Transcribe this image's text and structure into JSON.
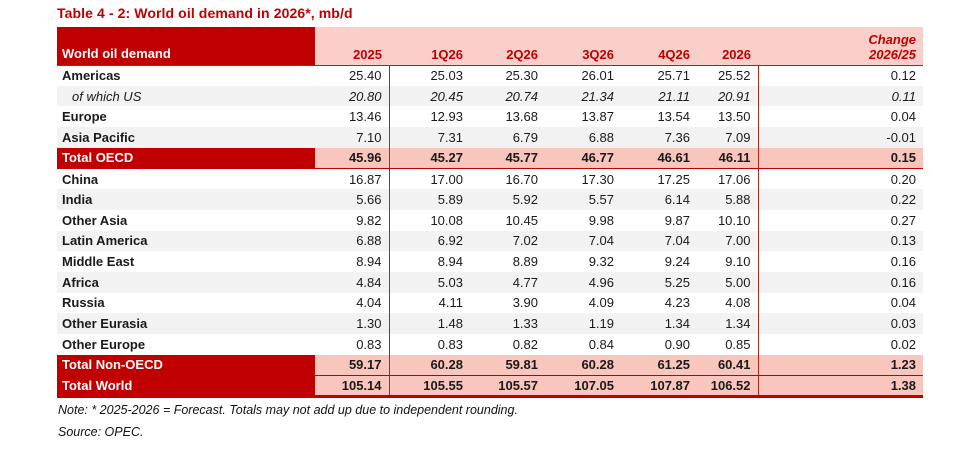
{
  "title": "Table 4 - 2: World oil demand in 2026*, mb/d",
  "colors": {
    "accent_dark_red": "#c00000",
    "header_pink": "#fbcfc9",
    "total_row_pink": "#f9c6bd",
    "shaded_row_gray": "#f2f2f2"
  },
  "table": {
    "label_header": "World oil demand",
    "columns": [
      "2025",
      "1Q26",
      "2Q26",
      "3Q26",
      "4Q26",
      "2026"
    ],
    "change_header_line1": "Change",
    "change_header_line2": "2026/25",
    "rows": [
      {
        "label": "Americas",
        "style": "normal",
        "shaded": false,
        "values": [
          "25.40",
          "25.03",
          "25.30",
          "26.01",
          "25.71",
          "25.52",
          "0.12"
        ]
      },
      {
        "label": "of which US",
        "style": "sub",
        "shaded": true,
        "values": [
          "20.80",
          "20.45",
          "20.74",
          "21.34",
          "21.11",
          "20.91",
          "0.11"
        ]
      },
      {
        "label": "Europe",
        "style": "normal",
        "shaded": false,
        "values": [
          "13.46",
          "12.93",
          "13.68",
          "13.87",
          "13.54",
          "13.50",
          "0.04"
        ]
      },
      {
        "label": "Asia Pacific",
        "style": "normal",
        "shaded": true,
        "values": [
          "7.10",
          "7.31",
          "6.79",
          "6.88",
          "7.36",
          "7.09",
          "-0.01"
        ]
      },
      {
        "label": "Total OECD",
        "style": "total",
        "shaded": false,
        "values": [
          "45.96",
          "45.27",
          "45.77",
          "46.77",
          "46.61",
          "46.11",
          "0.15"
        ]
      },
      {
        "label": "China",
        "style": "normal",
        "shaded": false,
        "values": [
          "16.87",
          "17.00",
          "16.70",
          "17.30",
          "17.25",
          "17.06",
          "0.20"
        ]
      },
      {
        "label": "India",
        "style": "normal",
        "shaded": true,
        "values": [
          "5.66",
          "5.89",
          "5.92",
          "5.57",
          "6.14",
          "5.88",
          "0.22"
        ]
      },
      {
        "label": "Other Asia",
        "style": "normal",
        "shaded": false,
        "values": [
          "9.82",
          "10.08",
          "10.45",
          "9.98",
          "9.87",
          "10.10",
          "0.27"
        ]
      },
      {
        "label": "Latin America",
        "style": "normal",
        "shaded": true,
        "values": [
          "6.88",
          "6.92",
          "7.02",
          "7.04",
          "7.04",
          "7.00",
          "0.13"
        ]
      },
      {
        "label": "Middle East",
        "style": "normal",
        "shaded": false,
        "values": [
          "8.94",
          "8.94",
          "8.89",
          "9.32",
          "9.24",
          "9.10",
          "0.16"
        ]
      },
      {
        "label": "Africa",
        "style": "normal",
        "shaded": true,
        "values": [
          "4.84",
          "5.03",
          "4.77",
          "4.96",
          "5.25",
          "5.00",
          "0.16"
        ]
      },
      {
        "label": "Russia",
        "style": "normal",
        "shaded": false,
        "values": [
          "4.04",
          "4.11",
          "3.90",
          "4.09",
          "4.23",
          "4.08",
          "0.04"
        ]
      },
      {
        "label": "Other Eurasia",
        "style": "normal",
        "shaded": true,
        "values": [
          "1.30",
          "1.48",
          "1.33",
          "1.19",
          "1.34",
          "1.34",
          "0.03"
        ]
      },
      {
        "label": "Other Europe",
        "style": "normal",
        "shaded": false,
        "values": [
          "0.83",
          "0.83",
          "0.82",
          "0.84",
          "0.90",
          "0.85",
          "0.02"
        ]
      },
      {
        "label": "Total Non-OECD",
        "style": "total",
        "shaded": false,
        "values": [
          "59.17",
          "60.28",
          "59.81",
          "60.28",
          "61.25",
          "60.41",
          "1.23"
        ]
      },
      {
        "label": "Total World",
        "style": "total",
        "shaded": false,
        "values": [
          "105.14",
          "105.55",
          "105.57",
          "107.05",
          "107.87",
          "106.52",
          "1.38"
        ]
      }
    ]
  },
  "notes": {
    "note": "Note: * 2025-2026 = Forecast. Totals may not add up due to independent rounding.",
    "source": "Source: OPEC."
  }
}
